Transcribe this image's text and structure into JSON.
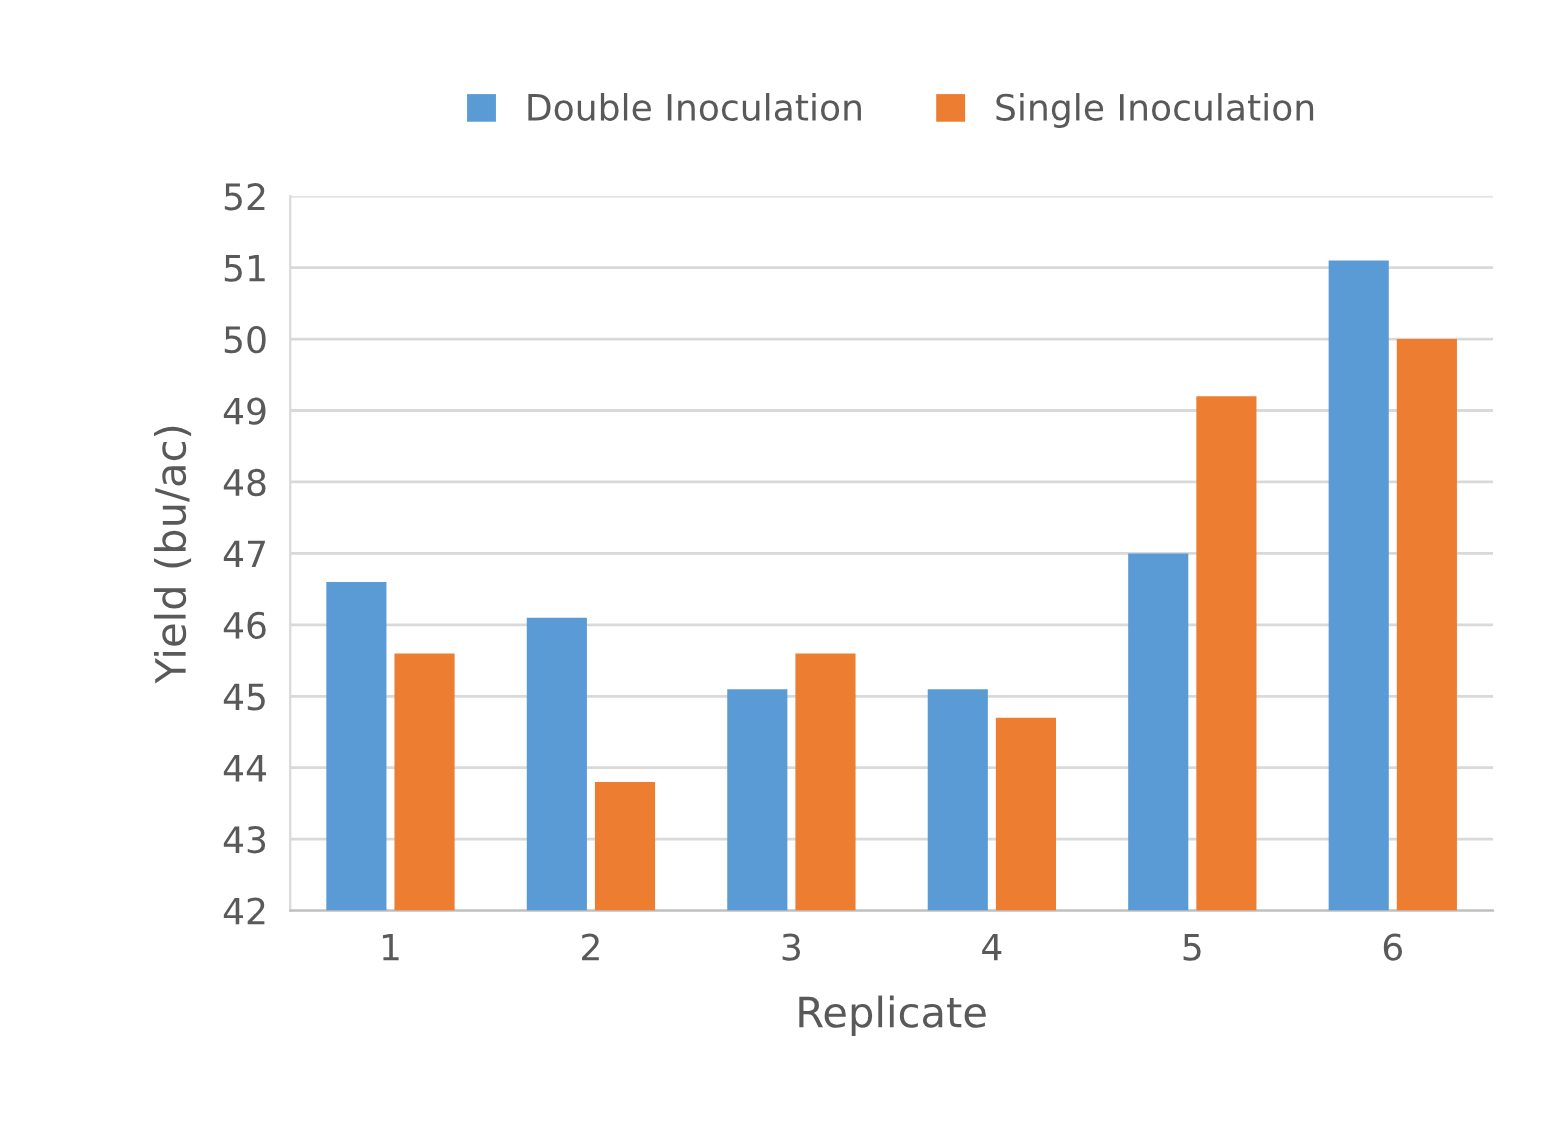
{
  "chart_data": {
    "type": "bar",
    "xlabel": "Replicate",
    "ylabel": "Yield (bu/ac)",
    "categories": [
      "1",
      "2",
      "3",
      "4",
      "5",
      "6"
    ],
    "series": [
      {
        "name": "Double Inoculation",
        "color": "#5b9bd5",
        "values": [
          46.6,
          46.1,
          45.1,
          45.1,
          47.0,
          51.1
        ]
      },
      {
        "name": "Single Inoculation",
        "color": "#ed7d31",
        "values": [
          45.6,
          43.8,
          45.6,
          44.7,
          49.2,
          50.0
        ]
      }
    ],
    "ylim": [
      42,
      52
    ],
    "yticks": [
      42,
      43,
      44,
      45,
      46,
      47,
      48,
      49,
      50,
      51,
      52
    ],
    "grid": "y",
    "legend": "top"
  }
}
